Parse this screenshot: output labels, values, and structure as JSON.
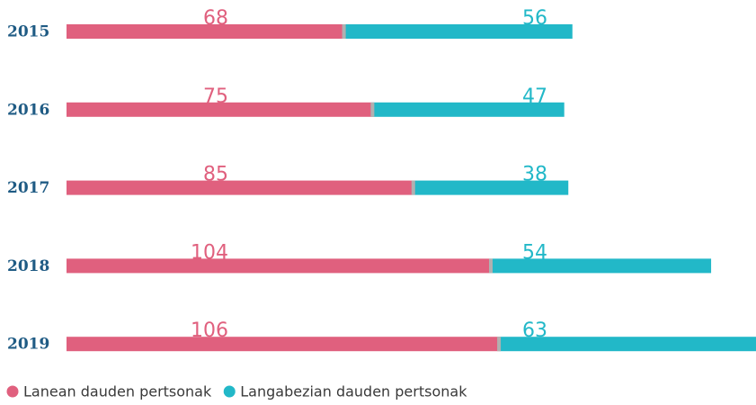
{
  "chart_data": {
    "type": "stacked-bar-horizontal",
    "categories": [
      "2015",
      "2016",
      "2017",
      "2018",
      "2019"
    ],
    "series": [
      {
        "name": "Lanean dauden pertsonak",
        "color": "#e0607e",
        "values": [
          68,
          75,
          85,
          104,
          106
        ]
      },
      {
        "name": "Langabezian dauden pertsonak",
        "color": "#22b8c8",
        "values": [
          56,
          47,
          38,
          54,
          63
        ]
      }
    ],
    "xlim": [
      0,
      169
    ]
  }
}
